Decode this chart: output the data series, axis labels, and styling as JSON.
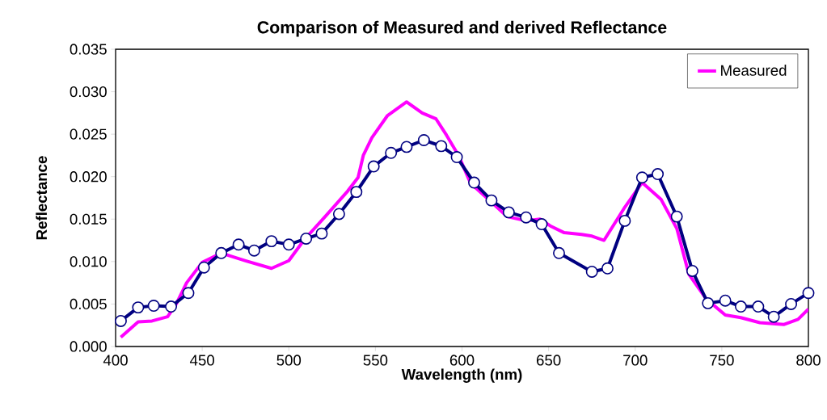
{
  "chart_data": {
    "type": "line",
    "title": "Comparison of Measured and derived Reflectance",
    "xlabel": "Wavelength (nm)",
    "ylabel": "Reflectance",
    "xlim": [
      400,
      800
    ],
    "xticks": [
      400,
      450,
      500,
      550,
      600,
      650,
      700,
      750,
      800
    ],
    "ylim": [
      0,
      0.035
    ],
    "yticks": [
      {
        "value": 0,
        "label": "0.000"
      },
      {
        "value": 0.005,
        "label": "0.005"
      },
      {
        "value": 0.01,
        "label": "0.010"
      },
      {
        "value": 0.015,
        "label": "0.015"
      },
      {
        "value": 0.02,
        "label": "0.020"
      },
      {
        "value": 0.025,
        "label": "0.025"
      },
      {
        "value": 0.03,
        "label": "0.030"
      },
      {
        "value": 0.035,
        "label": "0.035"
      }
    ],
    "grid": false,
    "legend": "top right",
    "line_style": "solid",
    "series": [
      {
        "color": "#000080",
        "marker": "circle",
        "x": [
          403,
          413,
          422,
          432,
          442,
          451,
          461,
          471,
          480,
          490,
          500,
          510,
          519,
          529,
          539,
          549,
          559,
          568,
          578,
          588,
          597,
          607,
          617,
          627,
          637,
          646,
          656,
          675,
          684,
          694,
          704,
          713,
          724,
          733,
          742,
          752,
          761,
          771,
          780,
          790,
          800
        ],
        "values": [
          0.003,
          0.0046,
          0.0048,
          0.0047,
          0.0063,
          0.0093,
          0.011,
          0.012,
          0.0113,
          0.0124,
          0.012,
          0.0127,
          0.0133,
          0.0156,
          0.0182,
          0.0212,
          0.0228,
          0.0235,
          0.0243,
          0.0236,
          0.0223,
          0.0193,
          0.0172,
          0.0158,
          0.0152,
          0.0144,
          0.011,
          0.0088,
          0.0092,
          0.0148,
          0.0199,
          0.0203,
          0.0153,
          0.0089,
          0.0051,
          0.0054,
          0.0047,
          0.0047,
          0.0035,
          0.005,
          0.0063
        ]
      },
      {
        "name": "Measured",
        "color": "#ff00ff",
        "marker": "none",
        "x": [
          403,
          413,
          421,
          430,
          435,
          441,
          450,
          461,
          475,
          490,
          500,
          509,
          521,
          534,
          540,
          543,
          548,
          557,
          568,
          577,
          585,
          591,
          598,
          605,
          617,
          626,
          637,
          645,
          651,
          659,
          669,
          675,
          682,
          694,
          704,
          715,
          724,
          731,
          741,
          752,
          761,
          772,
          786,
          794,
          800
        ],
        "values": [
          0.0011,
          0.0029,
          0.003,
          0.0035,
          0.005,
          0.0075,
          0.0099,
          0.011,
          0.0101,
          0.0092,
          0.0101,
          0.0126,
          0.0153,
          0.0183,
          0.0199,
          0.0225,
          0.0246,
          0.0272,
          0.0288,
          0.0275,
          0.0268,
          0.0249,
          0.0225,
          0.0192,
          0.017,
          0.0153,
          0.0148,
          0.015,
          0.0142,
          0.0134,
          0.0132,
          0.013,
          0.0125,
          0.0164,
          0.0193,
          0.0173,
          0.0139,
          0.0085,
          0.0056,
          0.0037,
          0.0034,
          0.0028,
          0.0026,
          0.0032,
          0.0044
        ]
      }
    ]
  }
}
